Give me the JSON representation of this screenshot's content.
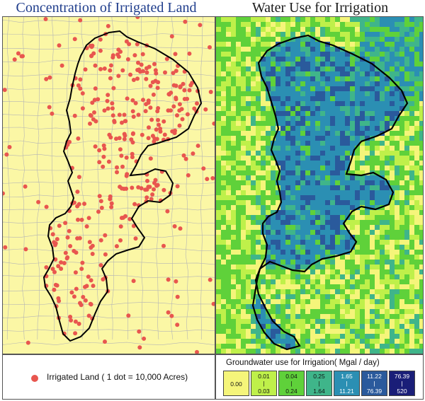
{
  "titles": {
    "left": "Concentration of Irrigated Land",
    "right": "Water Use for Irrigation"
  },
  "legend_left": {
    "label": "Irrigated Land ( 1 dot = 10,000 Acres)",
    "dot_color": "#e8564f"
  },
  "legend_right": {
    "title": "Groundwater use for Irrigation( Mgal / day)",
    "classes": [
      {
        "single": "0.00",
        "color": "#f5f57a"
      },
      {
        "low": "0.01",
        "high": "0.03",
        "color": "#bff04a"
      },
      {
        "low": "0.04",
        "high": "0.24",
        "color": "#5fd13a"
      },
      {
        "low": "0.25",
        "high": "1.64",
        "color": "#3fb58a"
      },
      {
        "low": "1.65",
        "high": "11.21",
        "color": "#2b8fb3"
      },
      {
        "low": "11.22",
        "high": "76.39",
        "color": "#2a5a9c"
      },
      {
        "low": "76.39",
        "high": "520",
        "color": "#1a1e78"
      }
    ]
  },
  "colors": {
    "left_background": "#fbf7a5",
    "county_lines": "#b5b5b5",
    "aquifer_outline": "#000000",
    "right_background": "#e8f27a",
    "dark_blue": "#1a1e78"
  }
}
